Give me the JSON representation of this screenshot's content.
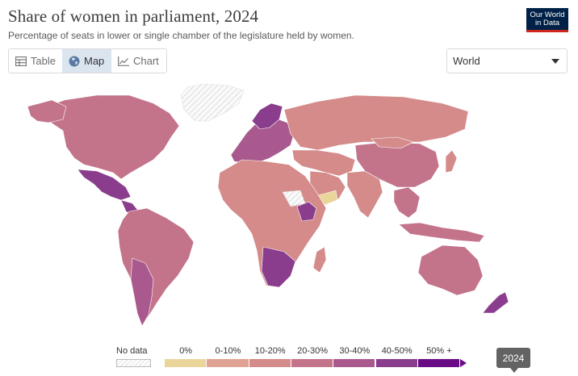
{
  "header": {
    "title": "Share of women in parliament, 2024",
    "subtitle": "Percentage of seats in lower or single chamber of the legislature held by women."
  },
  "logo": {
    "line1": "Our World",
    "line2": "in Data",
    "bg": "#002147",
    "accent": "#ce261e"
  },
  "tabs": [
    {
      "label": "Table",
      "icon": "table-icon",
      "active": false
    },
    {
      "label": "Map",
      "icon": "globe-icon",
      "active": true
    },
    {
      "label": "Chart",
      "icon": "line-chart-icon",
      "active": false
    }
  ],
  "region_selector": {
    "value": "World",
    "icon": "caret-down-icon"
  },
  "legend": {
    "no_data_label": "No data",
    "bins": [
      {
        "label": "0%",
        "color": "#ead69a"
      },
      {
        "label": "0-10%",
        "color": "#e0a293"
      },
      {
        "label": "10-20%",
        "color": "#d48b8a"
      },
      {
        "label": "20-30%",
        "color": "#c3738a"
      },
      {
        "label": "30-40%",
        "color": "#a9598e"
      },
      {
        "label": "40-50%",
        "color": "#8a3d8c"
      },
      {
        "label": "50% +",
        "color": "#680b85"
      }
    ]
  },
  "timeline": {
    "year": "2024"
  },
  "map": {
    "no_data_color": "#eeeeee",
    "colors": {
      "north_america": "#c3738a",
      "mexico": "#8a3d8c",
      "greenland": "#eeeeee",
      "south_america": "#c3738a",
      "argentina": "#a9598e",
      "europe": "#a9598e",
      "scandinavia": "#8a3d8c",
      "russia": "#d48b8a",
      "middle_east": "#d48b8a",
      "yemen": "#ead69a",
      "africa": "#d48b8a",
      "ethiopia": "#8a3d8c",
      "southern_africa": "#8a3d8c",
      "china": "#c3738a",
      "india": "#d48b8a",
      "southeast_asia": "#c3738a",
      "australia": "#c3738a",
      "new_zealand": "#8a3d8c"
    }
  }
}
